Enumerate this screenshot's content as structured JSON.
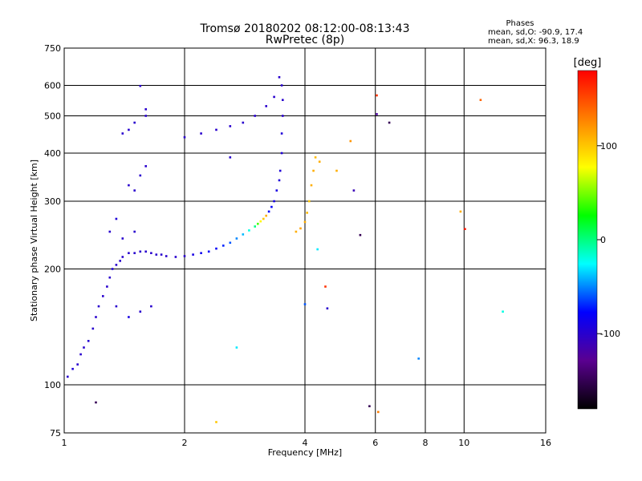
{
  "chart_data": {
    "type": "scatter",
    "title": "Tromsø 20180202 08:12:00-08:13:43",
    "subtitle": "RwPretec (8p)",
    "xlabel": "Frequency [MHz]",
    "ylabel": "Stationary phase Virtual Height [km]",
    "x_scale": "log",
    "y_scale": "log",
    "xlim": [
      1,
      16
    ],
    "ylim": [
      75,
      750
    ],
    "x_ticks": [
      "1",
      "2",
      "4",
      "6",
      "8",
      "10",
      "16"
    ],
    "x_tick_values": [
      1,
      2,
      4,
      6,
      8,
      10,
      16
    ],
    "y_ticks": [
      "75",
      "100",
      "200",
      "300",
      "400",
      "500",
      "600",
      "750"
    ],
    "y_tick_values": [
      75,
      100,
      200,
      300,
      400,
      500,
      600,
      750
    ],
    "grid": true,
    "phases_header": "Phases",
    "stats_o": "mean, sd,O: -90.9, 17.4",
    "stats_x": "mean, sd,X:  96.3, 18.9",
    "colorbar": {
      "label": "[deg]",
      "ticks": [
        "100",
        "0",
        "-100"
      ],
      "tick_values": [
        100,
        0,
        -100
      ],
      "range": [
        -180,
        180
      ],
      "colors": [
        "#000000",
        "#5a0090",
        "#0000ff",
        "#00ffff",
        "#00ff00",
        "#ffff00",
        "#ff8000",
        "#ff0000"
      ]
    },
    "series": [
      {
        "description_unit": "trace points: frequency MHz, virtual height km, phase deg",
        "points": [
          [
            1.02,
            105,
            -100
          ],
          [
            1.05,
            110,
            -95
          ],
          [
            1.08,
            113,
            -100
          ],
          [
            1.1,
            120,
            -100
          ],
          [
            1.12,
            125,
            -100
          ],
          [
            1.15,
            130,
            -98
          ],
          [
            1.18,
            140,
            -100
          ],
          [
            1.2,
            150,
            -100
          ],
          [
            1.22,
            160,
            -100
          ],
          [
            1.25,
            170,
            -100
          ],
          [
            1.28,
            180,
            -100
          ],
          [
            1.3,
            190,
            -100
          ],
          [
            1.32,
            200,
            -95
          ],
          [
            1.35,
            205,
            -100
          ],
          [
            1.38,
            210,
            -100
          ],
          [
            1.4,
            215,
            -100
          ],
          [
            1.45,
            220,
            -100
          ],
          [
            1.5,
            220,
            -100
          ],
          [
            1.55,
            222,
            -100
          ],
          [
            1.6,
            222,
            -100
          ],
          [
            1.65,
            220,
            -100
          ],
          [
            1.7,
            218,
            -100
          ],
          [
            1.75,
            218,
            -100
          ],
          [
            1.8,
            216,
            -100
          ],
          [
            1.9,
            215,
            -100
          ],
          [
            2.0,
            216,
            -100
          ],
          [
            2.1,
            218,
            -90
          ],
          [
            2.2,
            220,
            -85
          ],
          [
            2.3,
            222,
            -80
          ],
          [
            2.4,
            226,
            -80
          ],
          [
            2.5,
            230,
            -70
          ],
          [
            2.6,
            234,
            -60
          ],
          [
            2.7,
            240,
            -50
          ],
          [
            2.8,
            246,
            -40
          ],
          [
            2.9,
            252,
            -20
          ],
          [
            3.0,
            258,
            0
          ],
          [
            3.05,
            262,
            40
          ],
          [
            3.1,
            266,
            80
          ],
          [
            3.15,
            270,
            100
          ],
          [
            3.2,
            275,
            110
          ],
          [
            3.25,
            282,
            -80
          ],
          [
            3.3,
            290,
            -80
          ],
          [
            3.35,
            300,
            -90
          ],
          [
            3.4,
            320,
            -90
          ],
          [
            3.45,
            340,
            -95
          ],
          [
            3.47,
            360,
            -95
          ],
          [
            3.5,
            400,
            -95
          ],
          [
            3.5,
            450,
            -95
          ],
          [
            3.52,
            500,
            -100
          ],
          [
            3.52,
            550,
            -100
          ],
          [
            3.5,
            600,
            -100
          ],
          [
            3.45,
            630,
            -100
          ],
          [
            2.0,
            440,
            -100
          ],
          [
            2.2,
            450,
            -100
          ],
          [
            2.4,
            460,
            -100
          ],
          [
            2.6,
            470,
            -100
          ],
          [
            2.8,
            480,
            -100
          ],
          [
            3.0,
            500,
            -100
          ],
          [
            3.2,
            530,
            -100
          ],
          [
            3.35,
            560,
            -100
          ],
          [
            3.8,
            250,
            110
          ],
          [
            3.9,
            255,
            115
          ],
          [
            4.0,
            265,
            110
          ],
          [
            4.05,
            280,
            105
          ],
          [
            4.1,
            300,
            100
          ],
          [
            4.15,
            330,
            110
          ],
          [
            4.2,
            360,
            110
          ],
          [
            4.25,
            390,
            105
          ],
          [
            4.35,
            380,
            110
          ],
          [
            1.45,
            330,
            -100
          ],
          [
            1.5,
            320,
            -100
          ],
          [
            1.55,
            350,
            -100
          ],
          [
            1.6,
            370,
            -100
          ],
          [
            1.4,
            450,
            -100
          ],
          [
            1.45,
            460,
            -100
          ],
          [
            1.5,
            480,
            -100
          ],
          [
            1.6,
            500,
            -100
          ],
          [
            1.3,
            250,
            -100
          ],
          [
            1.35,
            270,
            -95
          ],
          [
            1.4,
            240,
            -100
          ],
          [
            1.5,
            250,
            -100
          ],
          [
            1.35,
            160,
            -100
          ],
          [
            1.45,
            150,
            -90
          ],
          [
            1.55,
            155,
            -100
          ],
          [
            1.65,
            160,
            -100
          ]
        ]
      },
      {
        "description_unit": "isolated points: frequency MHz, virtual height km, phase deg",
        "points": [
          [
            1.55,
            598,
            -100
          ],
          [
            1.6,
            520,
            -100
          ],
          [
            2.6,
            390,
            -100
          ],
          [
            4.8,
            360,
            110
          ],
          [
            5.3,
            320,
            -110
          ],
          [
            5.5,
            245,
            -150
          ],
          [
            5.2,
            430,
            120
          ],
          [
            6.05,
            565,
            160
          ],
          [
            6.05,
            505,
            -120
          ],
          [
            6.5,
            480,
            -150
          ],
          [
            4.5,
            180,
            160
          ],
          [
            4.0,
            162,
            -60
          ],
          [
            4.55,
            158,
            -100
          ],
          [
            4.3,
            225,
            -30
          ],
          [
            2.4,
            80,
            100
          ],
          [
            2.7,
            125,
            -30
          ],
          [
            1.2,
            90,
            -150
          ],
          [
            5.8,
            88,
            -150
          ],
          [
            6.1,
            85,
            130
          ],
          [
            7.7,
            117,
            -50
          ],
          [
            9.8,
            282,
            110
          ],
          [
            10.05,
            254,
            170
          ],
          [
            11.0,
            550,
            140
          ],
          [
            12.5,
            155,
            -20
          ]
        ]
      }
    ]
  }
}
